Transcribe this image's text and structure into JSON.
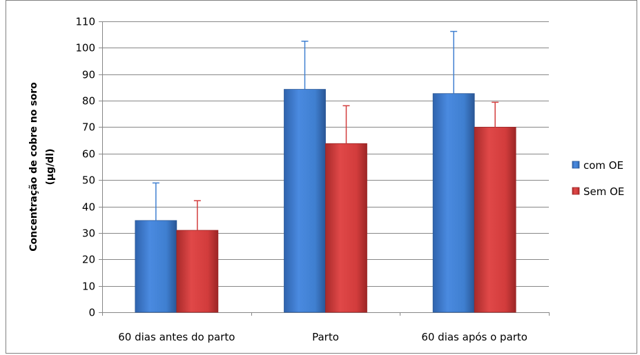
{
  "chart_data": {
    "type": "bar",
    "categories": [
      "60 dias antes do parto",
      "Parto",
      "60 dias após o parto"
    ],
    "series": [
      {
        "name": "com OE",
        "values": [
          34.7,
          84.3,
          82.7
        ],
        "error": [
          14.2,
          18.2,
          23.5
        ],
        "color": "#3f7fd0"
      },
      {
        "name": "Sem OE",
        "values": [
          31.0,
          63.8,
          70.0
        ],
        "error": [
          11.2,
          14.3,
          9.4
        ],
        "color": "#d23c3c"
      }
    ],
    "title": "",
    "xlabel": "",
    "ylabel_lines": [
      "Concentração de cobre no soro",
      "(µg/dl)"
    ],
    "ylim": [
      0,
      110
    ],
    "ytick_step": 10,
    "grid": true,
    "legend_position": "right"
  }
}
